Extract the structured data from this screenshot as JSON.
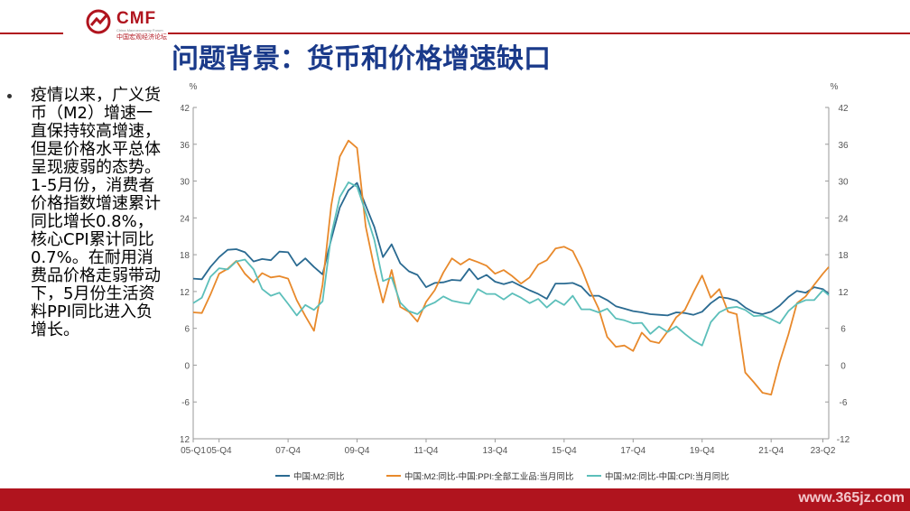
{
  "header": {
    "logo_text": "CMF",
    "logo_sub": "China Macroeconomy Forum",
    "logo_cn": "中国宏观经济论坛",
    "title": "问题背景：货币和价格增速缺口"
  },
  "bullet": {
    "text": "疫情以来，广义货币（M2）增速一直保持较高增速，但是价格水平总体呈现疲弱的态势。1-5月份，消费者价格指数增速累计同比增长0.8%，核心CPI累计同比0.7%。在耐用消费品价格走弱带动下，5月份生活资料PPI同比进入负增长。"
  },
  "footer": {
    "watermark": "www.365jz.com"
  },
  "colors": {
    "m2": "#2a6a91",
    "ppi": "#e8892b",
    "cpi": "#5cbfba",
    "brand": "#b0141e",
    "title": "#1a3a8a"
  },
  "chart_data": {
    "type": "line",
    "title": "",
    "unit_left": "%",
    "unit_right": "%",
    "ylim": [
      -12,
      42
    ],
    "yticks": [
      -12,
      -6,
      0,
      6,
      12,
      18,
      24,
      30,
      36,
      42
    ],
    "x_ticklabels": [
      "05-Q1",
      "05-Q4",
      "07-Q4",
      "09-Q4",
      "11-Q4",
      "13-Q4",
      "15-Q4",
      "17-Q4",
      "19-Q4",
      "21-Q4",
      "23-Q2"
    ],
    "x_tick_positions": [
      2005.0,
      2005.75,
      2007.75,
      2009.75,
      2011.75,
      2013.75,
      2015.75,
      2017.75,
      2019.75,
      2021.75,
      2023.25
    ],
    "xlim": [
      2005.0,
      2023.42
    ],
    "legend_position": "bottom",
    "grid": false,
    "series": [
      {
        "name": "中国:M2:同比",
        "color_key": "m2",
        "x": [
          2005.0,
          2005.25,
          2005.5,
          2005.75,
          2006.0,
          2006.25,
          2006.5,
          2006.75,
          2007.0,
          2007.25,
          2007.5,
          2007.75,
          2008.0,
          2008.25,
          2008.5,
          2008.75,
          2009.0,
          2009.25,
          2009.5,
          2009.75,
          2010.0,
          2010.25,
          2010.5,
          2010.75,
          2011.0,
          2011.25,
          2011.5,
          2011.75,
          2012.0,
          2012.25,
          2012.5,
          2012.75,
          2013.0,
          2013.25,
          2013.5,
          2013.75,
          2014.0,
          2014.25,
          2014.5,
          2014.75,
          2015.0,
          2015.25,
          2015.5,
          2015.75,
          2016.0,
          2016.25,
          2016.5,
          2016.75,
          2017.0,
          2017.25,
          2017.5,
          2017.75,
          2018.0,
          2018.25,
          2018.5,
          2018.75,
          2019.0,
          2019.25,
          2019.5,
          2019.75,
          2020.0,
          2020.25,
          2020.5,
          2020.75,
          2021.0,
          2021.25,
          2021.5,
          2021.75,
          2022.0,
          2022.25,
          2022.5,
          2022.75,
          2023.0,
          2023.25,
          2023.42
        ],
        "values": [
          14.1,
          14.0,
          16.0,
          17.6,
          18.8,
          18.9,
          18.4,
          16.9,
          17.3,
          17.1,
          18.5,
          18.4,
          16.2,
          17.4,
          16.0,
          14.8,
          20.5,
          25.7,
          28.5,
          29.7,
          26.0,
          22.5,
          17.6,
          19.7,
          16.6,
          15.3,
          14.7,
          12.7,
          13.4,
          13.5,
          13.9,
          13.8,
          15.7,
          14.0,
          14.7,
          13.6,
          13.2,
          13.6,
          12.9,
          12.2,
          11.6,
          10.8,
          13.3,
          13.3,
          13.4,
          12.8,
          11.3,
          11.3,
          10.6,
          9.6,
          9.2,
          8.8,
          8.6,
          8.3,
          8.2,
          8.1,
          8.6,
          8.5,
          8.2,
          8.7,
          10.1,
          11.1,
          10.9,
          10.5,
          9.4,
          8.6,
          8.3,
          8.7,
          9.7,
          11.1,
          12.1,
          11.8,
          12.7,
          12.4,
          11.6
        ]
      },
      {
        "name": "中国:M2:同比-中国:PPI:全部工业品:当月同比",
        "color_key": "ppi",
        "x": [
          2005.0,
          2005.25,
          2005.5,
          2005.75,
          2006.0,
          2006.25,
          2006.5,
          2006.75,
          2007.0,
          2007.25,
          2007.5,
          2007.75,
          2008.0,
          2008.25,
          2008.5,
          2008.75,
          2009.0,
          2009.25,
          2009.5,
          2009.75,
          2010.0,
          2010.25,
          2010.5,
          2010.75,
          2011.0,
          2011.25,
          2011.5,
          2011.75,
          2012.0,
          2012.25,
          2012.5,
          2012.75,
          2013.0,
          2013.25,
          2013.5,
          2013.75,
          2014.0,
          2014.25,
          2014.5,
          2014.75,
          2015.0,
          2015.25,
          2015.5,
          2015.75,
          2016.0,
          2016.25,
          2016.5,
          2016.75,
          2017.0,
          2017.25,
          2017.5,
          2017.75,
          2018.0,
          2018.25,
          2018.5,
          2018.75,
          2019.0,
          2019.25,
          2019.5,
          2019.75,
          2020.0,
          2020.25,
          2020.5,
          2020.75,
          2021.0,
          2021.25,
          2021.5,
          2021.75,
          2022.0,
          2022.25,
          2022.5,
          2022.75,
          2023.0,
          2023.25,
          2023.42
        ],
        "values": [
          8.6,
          8.5,
          11.5,
          14.9,
          15.7,
          17.0,
          14.9,
          13.5,
          15.0,
          14.3,
          14.5,
          14.1,
          10.6,
          8.0,
          5.6,
          13.1,
          26.0,
          34.0,
          36.6,
          35.4,
          22.6,
          15.8,
          10.2,
          15.5,
          9.5,
          8.7,
          7.1,
          10.3,
          12.2,
          15.1,
          17.4,
          16.4,
          17.3,
          16.8,
          16.2,
          14.9,
          15.5,
          14.5,
          13.3,
          14.3,
          16.4,
          17.1,
          19.0,
          19.3,
          18.6,
          15.8,
          12.2,
          9.2,
          4.6,
          3.0,
          3.2,
          2.3,
          5.3,
          3.9,
          3.6,
          5.5,
          7.8,
          9.0,
          11.9,
          14.6,
          11.0,
          12.4,
          8.7,
          8.3,
          -1.2,
          -2.8,
          -4.5,
          -4.8,
          0.5,
          5.0,
          10.1,
          11.2,
          13.1,
          14.9,
          16.0
        ]
      },
      {
        "name": "中国:M2:同比-中国:CPI:当月同比",
        "color_key": "cpi",
        "x": [
          2005.0,
          2005.25,
          2005.5,
          2005.75,
          2006.0,
          2006.25,
          2006.5,
          2006.75,
          2007.0,
          2007.25,
          2007.5,
          2007.75,
          2008.0,
          2008.25,
          2008.5,
          2008.75,
          2009.0,
          2009.25,
          2009.5,
          2009.75,
          2010.0,
          2010.25,
          2010.5,
          2010.75,
          2011.0,
          2011.25,
          2011.5,
          2011.75,
          2012.0,
          2012.25,
          2012.5,
          2012.75,
          2013.0,
          2013.25,
          2013.5,
          2013.75,
          2014.0,
          2014.25,
          2014.5,
          2014.75,
          2015.0,
          2015.25,
          2015.5,
          2015.75,
          2016.0,
          2016.25,
          2016.5,
          2016.75,
          2017.0,
          2017.25,
          2017.5,
          2017.75,
          2018.0,
          2018.25,
          2018.5,
          2018.75,
          2019.0,
          2019.25,
          2019.5,
          2019.75,
          2020.0,
          2020.25,
          2020.5,
          2020.75,
          2021.0,
          2021.25,
          2021.5,
          2021.75,
          2022.0,
          2022.25,
          2022.5,
          2022.75,
          2023.0,
          2023.25,
          2023.42
        ],
        "values": [
          10.1,
          11.0,
          14.4,
          15.8,
          15.6,
          16.9,
          17.2,
          15.6,
          12.4,
          11.3,
          11.8,
          10.0,
          8.1,
          9.8,
          9.0,
          10.4,
          21.2,
          27.4,
          29.8,
          29.1,
          24.9,
          20.4,
          13.7,
          14.3,
          10.2,
          8.8,
          8.3,
          9.6,
          10.2,
          11.2,
          10.5,
          10.2,
          10.0,
          12.4,
          11.6,
          11.6,
          10.7,
          11.7,
          11.0,
          10.1,
          10.8,
          9.4,
          10.6,
          9.8,
          11.3,
          9.1,
          9.1,
          8.6,
          9.2,
          7.6,
          7.3,
          6.8,
          6.9,
          5.1,
          6.3,
          5.4,
          6.3,
          5.1,
          4.0,
          3.2,
          7.0,
          8.6,
          9.3,
          9.5,
          9.0,
          8.0,
          8.1,
          7.5,
          6.8,
          8.8,
          10.0,
          10.6,
          10.6,
          12.2,
          11.4
        ]
      }
    ]
  }
}
